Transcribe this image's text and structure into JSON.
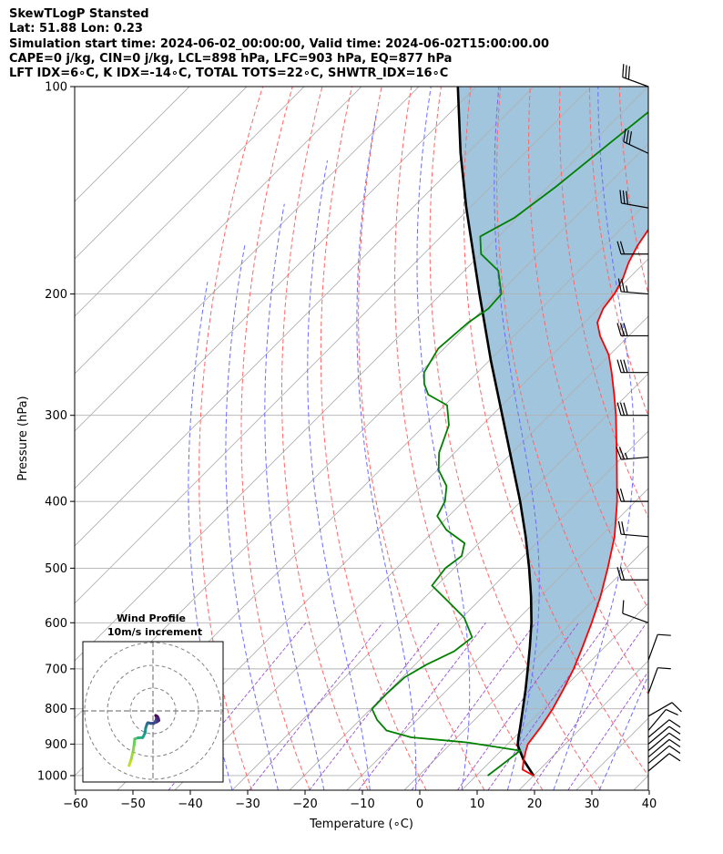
{
  "header": {
    "title": "SkewTLogP Stansted",
    "latlon": "Lat: 51.88   Lon: 0.23",
    "times": "Simulation start time: 2024-06-02_00:00:00, Valid time: 2024-06-02T15:00:00.00",
    "indices1": "CAPE=0 j/kg, CIN=0 j/kg, LCL=898 hPa, LFC=903 hPa, EQ=877 hPa",
    "indices2": "LFT IDX=6∘C, K IDX=-14∘C, TOTAL TOTS=22∘C, SHWTR_IDX=16∘C"
  },
  "chart_data": {
    "type": "line",
    "title": "SkewTLogP Stansted",
    "xlabel": "Temperature (∘C)",
    "ylabel": "Pressure (hPa)",
    "xlim": [
      -60,
      40
    ],
    "ylim": [
      1050,
      100
    ],
    "y_scale": "log",
    "skew": true,
    "grid": true,
    "x_ticks": [
      -60,
      -50,
      -40,
      -30,
      -20,
      -10,
      0,
      10,
      20,
      30,
      40
    ],
    "x_tick_labels": [
      "−60",
      "−50",
      "−40",
      "−30",
      "−20",
      "−10",
      "0",
      "10",
      "20",
      "30",
      "40"
    ],
    "y_ticks": [
      100,
      200,
      300,
      400,
      500,
      600,
      700,
      800,
      900,
      1000
    ],
    "y_tick_labels": [
      "100",
      "200",
      "300",
      "400",
      "500",
      "600",
      "700",
      "800",
      "900",
      "1000"
    ],
    "colors": {
      "temperature": "#ff0000",
      "dewpoint": "#008000",
      "parcel": "#000000",
      "shade": "#a2c5de",
      "dry_adiabat": "#ff6666",
      "moist_adiabat": "#6b6bff",
      "mixing_ratio": "#9a4fd4",
      "isotherm": "#b0b0b0",
      "wind_barb": "#000000"
    },
    "series": [
      {
        "key": "temperature",
        "points": [
          [
            1000,
            20
          ],
          [
            980,
            17
          ],
          [
            950,
            15.6
          ],
          [
            920,
            14.3
          ],
          [
            900,
            13.5
          ],
          [
            850,
            12.8
          ],
          [
            800,
            11.7
          ],
          [
            750,
            10.2
          ],
          [
            700,
            8.4
          ],
          [
            650,
            6.1
          ],
          [
            600,
            3.5
          ],
          [
            550,
            0.5
          ],
          [
            500,
            -3.2
          ],
          [
            450,
            -7.5
          ],
          [
            400,
            -13.2
          ],
          [
            350,
            -20.2
          ],
          [
            300,
            -28.4
          ],
          [
            280,
            -32.3
          ],
          [
            260,
            -36.6
          ],
          [
            245,
            -40.2
          ],
          [
            230,
            -45.0
          ],
          [
            220,
            -47.8
          ],
          [
            210,
            -49.2
          ],
          [
            200,
            -49.8
          ],
          [
            190,
            -51.0
          ],
          [
            180,
            -52.8
          ],
          [
            170,
            -54.2
          ],
          [
            160,
            -55.2
          ],
          [
            150,
            -56.2
          ],
          [
            140,
            -57.7
          ],
          [
            130,
            -59.1
          ],
          [
            120,
            -60.6
          ],
          [
            110,
            -62.3
          ],
          [
            100,
            -64.2
          ]
        ]
      },
      {
        "key": "dewpoint",
        "points": [
          [
            1000,
            12
          ],
          [
            970,
            12.5
          ],
          [
            920,
            13.3
          ],
          [
            895,
            2.7
          ],
          [
            880,
            -8.0
          ],
          [
            860,
            -13.5
          ],
          [
            830,
            -17.0
          ],
          [
            800,
            -19.8
          ],
          [
            760,
            -19.9
          ],
          [
            720,
            -19.6
          ],
          [
            690,
            -18.0
          ],
          [
            660,
            -15.5
          ],
          [
            630,
            -14.8
          ],
          [
            590,
            -19.6
          ],
          [
            560,
            -25.0
          ],
          [
            530,
            -30.8
          ],
          [
            500,
            -31.5
          ],
          [
            480,
            -30.8
          ],
          [
            460,
            -32.5
          ],
          [
            440,
            -38.0
          ],
          [
            420,
            -42.0
          ],
          [
            400,
            -43.2
          ],
          [
            380,
            -45.6
          ],
          [
            360,
            -49.8
          ],
          [
            340,
            -52.7
          ],
          [
            310,
            -55.8
          ],
          [
            290,
            -59.6
          ],
          [
            280,
            -64.7
          ],
          [
            270,
            -67.3
          ],
          [
            260,
            -69.3
          ],
          [
            240,
            -71.0
          ],
          [
            220,
            -70.3
          ],
          [
            210,
            -69.2
          ],
          [
            200,
            -69.5
          ],
          [
            185,
            -74.1
          ],
          [
            175,
            -80.0
          ],
          [
            165,
            -83.2
          ],
          [
            155,
            -80.5
          ],
          [
            140,
            -78.7
          ],
          [
            125,
            -77.3
          ],
          [
            110,
            -75.7
          ],
          [
            100,
            -74.2
          ]
        ]
      },
      {
        "key": "parcel",
        "points": [
          [
            1000,
            20
          ],
          [
            950,
            15.6
          ],
          [
            903,
            11.9
          ],
          [
            880,
            10.7
          ],
          [
            850,
            9.2
          ],
          [
            800,
            6.5
          ],
          [
            750,
            3.6
          ],
          [
            700,
            0.4
          ],
          [
            650,
            -3.1
          ],
          [
            600,
            -7.0
          ],
          [
            550,
            -11.6
          ],
          [
            500,
            -16.9
          ],
          [
            450,
            -23.0
          ],
          [
            400,
            -30.1
          ],
          [
            350,
            -38.5
          ],
          [
            300,
            -48.2
          ],
          [
            250,
            -59.7
          ],
          [
            200,
            -73.3
          ],
          [
            150,
            -90.6
          ],
          [
            125,
            -101.1
          ],
          [
            100,
            -113.2
          ]
        ]
      }
    ],
    "annotations": {
      "LCL_hPa": 898,
      "LFC_hPa": 903,
      "EQ_hPa": 877,
      "CAPE_j_kg": 0,
      "CIN_j_kg": 0
    },
    "wind_profile": {
      "title": "Wind Profile",
      "subtitle": "10m/s increment",
      "rings_ms": [
        10,
        20,
        30
      ],
      "hodograph_uv": [
        [
          -10.5,
          -24.0
        ],
        [
          -9.5,
          -21.0
        ],
        [
          -8.8,
          -18.0
        ],
        [
          -8.3,
          -15.0
        ],
        [
          -8.0,
          -12.3
        ],
        [
          -6.5,
          -11.8
        ],
        [
          -4.5,
          -11.7
        ],
        [
          -3.5,
          -9.7
        ],
        [
          -3.2,
          -7.5
        ],
        [
          -2.8,
          -6.3
        ],
        [
          -2.6,
          -5.7
        ],
        [
          -2.3,
          -5.2
        ],
        [
          -1.7,
          -5.3
        ],
        [
          -0.8,
          -5.5
        ],
        [
          0.6,
          -5.3
        ],
        [
          1.8,
          -4.8
        ],
        [
          2.6,
          -4.2
        ],
        [
          2.4,
          -3.3
        ],
        [
          1.9,
          -2.4
        ],
        [
          1.2,
          -2.0
        ],
        [
          1.6,
          -3.0
        ],
        [
          1.2,
          -4.4
        ],
        [
          0.2,
          -5.6
        ]
      ],
      "hodograph_colors": [
        "#bddf26",
        "#9fda3a",
        "#85d44a",
        "#6ccd5a",
        "#4ec36b",
        "#2ab07f",
        "#1fa187",
        "#21918c",
        "#25838e",
        "#2a788e",
        "#2c728e",
        "#306a8e",
        "#355f8d",
        "#3b528b",
        "#414487",
        "#453581",
        "#472878",
        "#481a6c",
        "#46085c",
        "#440154",
        "#482576",
        "#3e4a89",
        "#b5de2b"
      ]
    },
    "wind_barbs": [
      {
        "p": 100,
        "dir": 290,
        "speed": 30
      },
      {
        "p": 125,
        "dir": 295,
        "speed": 30
      },
      {
        "p": 150,
        "dir": 280,
        "speed": 30
      },
      {
        "p": 175,
        "dir": 270,
        "speed": 20
      },
      {
        "p": 200,
        "dir": 275,
        "speed": 25
      },
      {
        "p": 230,
        "dir": 270,
        "speed": 30
      },
      {
        "p": 260,
        "dir": 270,
        "speed": 30
      },
      {
        "p": 300,
        "dir": 270,
        "speed": 30
      },
      {
        "p": 345,
        "dir": 265,
        "speed": 25
      },
      {
        "p": 400,
        "dir": 270,
        "speed": 20
      },
      {
        "p": 450,
        "dir": 275,
        "speed": 20
      },
      {
        "p": 520,
        "dir": 270,
        "speed": 20
      },
      {
        "p": 600,
        "dir": 290,
        "speed": 10
      },
      {
        "p": 680,
        "dir": 20,
        "speed": 10
      },
      {
        "p": 760,
        "dir": 20,
        "speed": 10
      },
      {
        "p": 820,
        "dir": 60,
        "speed": 10
      },
      {
        "p": 860,
        "dir": 40,
        "speed": 10
      },
      {
        "p": 880,
        "dir": 50,
        "speed": 10
      },
      {
        "p": 900,
        "dir": 50,
        "speed": 10
      },
      {
        "p": 920,
        "dir": 50,
        "speed": 10
      },
      {
        "p": 940,
        "dir": 50,
        "speed": 10
      },
      {
        "p": 960,
        "dir": 50,
        "speed": 10
      },
      {
        "p": 985,
        "dir": 50,
        "speed": 10
      }
    ]
  }
}
